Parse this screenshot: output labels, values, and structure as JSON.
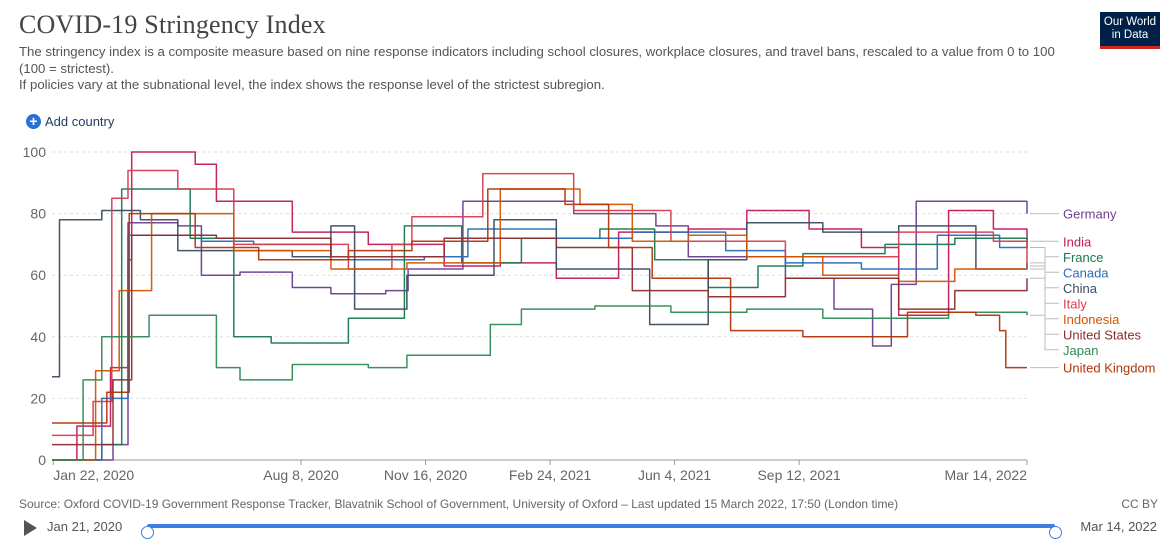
{
  "header": {
    "title": "COVID-19 Stringency Index",
    "subtitle_line1": "The stringency index is a composite measure based on nine response indicators including school closures, workplace closures, and travel bans, rescaled to a value from 0 to 100 (100 = strictest).",
    "subtitle_line2": "If policies vary at the subnational level, the index shows the response level of the strictest subregion.",
    "logo_line1": "Our World",
    "logo_line2": "in Data"
  },
  "controls": {
    "add_country_label": "Add country"
  },
  "footer": {
    "source": "Source: Oxford COVID-19 Government Response Tracker, Blavatnik School of Government, University of Oxford – Last updated 15 March 2022, 17:50 (London time)",
    "license": "CC BY"
  },
  "timeline": {
    "start_label": "Jan 21, 2020",
    "end_label": "Mar 14, 2022",
    "start_fraction": 0,
    "end_fraction": 1
  },
  "colors": {
    "logo_bg": "#002147",
    "logo_accent": "#ce261e",
    "slider": "#3d7fe0",
    "grid": "#dddddd"
  },
  "chart_data": {
    "type": "line",
    "title": "COVID-19 Stringency Index",
    "ylim": [
      0,
      100
    ],
    "yticks": [
      0,
      20,
      40,
      60,
      80,
      100
    ],
    "xlim": [
      "2020-01-21",
      "2022-03-14"
    ],
    "xticks": [
      "2020-01-22",
      "2020-08-08",
      "2020-11-16",
      "2021-02-24",
      "2021-06-04",
      "2021-09-12",
      "2022-03-14"
    ],
    "xtick_labels": [
      "Jan 22, 2020",
      "Aug 8, 2020",
      "Nov 16, 2020",
      "Feb 24, 2021",
      "Jun 4, 2021",
      "Sep 12, 2021",
      "Mar 14, 2022"
    ],
    "grid": "horizontal",
    "legend": "right",
    "series": [
      {
        "name": "Germany",
        "color": "#6d3e91",
        "points": [
          [
            "2020-01-21",
            0
          ],
          [
            "2020-03-10",
            5
          ],
          [
            "2020-03-22",
            77
          ],
          [
            "2020-05-01",
            76
          ],
          [
            "2020-05-20",
            60
          ],
          [
            "2020-06-20",
            61
          ],
          [
            "2020-08-01",
            56
          ],
          [
            "2020-09-01",
            54
          ],
          [
            "2020-10-15",
            55
          ],
          [
            "2020-11-02",
            62
          ],
          [
            "2020-12-16",
            84
          ],
          [
            "2021-01-20",
            84
          ],
          [
            "2021-03-15",
            80
          ],
          [
            "2021-05-20",
            76
          ],
          [
            "2021-06-15",
            66
          ],
          [
            "2021-09-01",
            59
          ],
          [
            "2021-10-10",
            49
          ],
          [
            "2021-11-10",
            37
          ],
          [
            "2021-11-25",
            57
          ],
          [
            "2021-12-15",
            84
          ],
          [
            "2022-03-01",
            84
          ],
          [
            "2022-03-14",
            80
          ]
        ]
      },
      {
        "name": "India",
        "color": "#c2185b",
        "points": [
          [
            "2020-01-21",
            0
          ],
          [
            "2020-02-10",
            11
          ],
          [
            "2020-03-08",
            30
          ],
          [
            "2020-03-22",
            65
          ],
          [
            "2020-03-25",
            100
          ],
          [
            "2020-05-15",
            96
          ],
          [
            "2020-06-01",
            84
          ],
          [
            "2020-08-01",
            74
          ],
          [
            "2020-10-01",
            70
          ],
          [
            "2020-12-01",
            63
          ],
          [
            "2021-01-15",
            64
          ],
          [
            "2021-03-01",
            59
          ],
          [
            "2021-04-20",
            74
          ],
          [
            "2021-06-15",
            75
          ],
          [
            "2021-08-01",
            81
          ],
          [
            "2021-09-20",
            75
          ],
          [
            "2021-11-01",
            69
          ],
          [
            "2021-12-01",
            47
          ],
          [
            "2022-01-10",
            81
          ],
          [
            "2022-02-15",
            75
          ],
          [
            "2022-03-14",
            71
          ]
        ]
      },
      {
        "name": "France",
        "color": "#18794e",
        "points": [
          [
            "2020-01-21",
            0
          ],
          [
            "2020-03-01",
            5
          ],
          [
            "2020-03-17",
            88
          ],
          [
            "2020-05-11",
            72
          ],
          [
            "2020-06-15",
            40
          ],
          [
            "2020-07-15",
            38
          ],
          [
            "2020-09-15",
            46
          ],
          [
            "2020-10-30",
            76
          ],
          [
            "2020-12-15",
            64
          ],
          [
            "2021-02-01",
            72
          ],
          [
            "2021-04-05",
            75
          ],
          [
            "2021-05-19",
            65
          ],
          [
            "2021-07-01",
            56
          ],
          [
            "2021-08-10",
            63
          ],
          [
            "2021-09-15",
            67
          ],
          [
            "2021-11-20",
            70
          ],
          [
            "2022-01-15",
            72
          ],
          [
            "2022-03-14",
            69
          ]
        ]
      },
      {
        "name": "Canada",
        "color": "#286bbb",
        "points": [
          [
            "2020-01-21",
            0
          ],
          [
            "2020-03-01",
            20
          ],
          [
            "2020-03-22",
            73
          ],
          [
            "2020-05-20",
            71
          ],
          [
            "2020-07-01",
            70
          ],
          [
            "2020-09-01",
            65
          ],
          [
            "2020-11-15",
            66
          ],
          [
            "2020-12-20",
            75
          ],
          [
            "2021-03-01",
            72
          ],
          [
            "2021-05-01",
            74
          ],
          [
            "2021-07-15",
            68
          ],
          [
            "2021-09-01",
            64
          ],
          [
            "2021-11-01",
            62
          ],
          [
            "2022-01-01",
            73
          ],
          [
            "2022-02-20",
            69
          ],
          [
            "2022-03-14",
            69
          ]
        ]
      },
      {
        "name": "China",
        "color": "#3a4c60",
        "points": [
          [
            "2020-01-21",
            27
          ],
          [
            "2020-01-27",
            78
          ],
          [
            "2020-03-01",
            81
          ],
          [
            "2020-04-01",
            78
          ],
          [
            "2020-05-01",
            68
          ],
          [
            "2020-08-01",
            66
          ],
          [
            "2020-09-01",
            76
          ],
          [
            "2020-09-20",
            49
          ],
          [
            "2020-11-01",
            60
          ],
          [
            "2021-01-10",
            78
          ],
          [
            "2021-03-01",
            62
          ],
          [
            "2021-05-15",
            44
          ],
          [
            "2021-07-01",
            65
          ],
          [
            "2021-08-01",
            77
          ],
          [
            "2021-10-01",
            74
          ],
          [
            "2021-12-01",
            76
          ],
          [
            "2022-02-01",
            62
          ],
          [
            "2022-03-14",
            64
          ]
        ]
      },
      {
        "name": "Italy",
        "color": "#d73c50",
        "points": [
          [
            "2020-01-21",
            8
          ],
          [
            "2020-02-23",
            19
          ],
          [
            "2020-03-09",
            85
          ],
          [
            "2020-03-22",
            94
          ],
          [
            "2020-05-01",
            88
          ],
          [
            "2020-06-15",
            70
          ],
          [
            "2020-09-15",
            62
          ],
          [
            "2020-10-20",
            70
          ],
          [
            "2020-11-05",
            79
          ],
          [
            "2021-01-01",
            93
          ],
          [
            "2021-03-15",
            81
          ],
          [
            "2021-06-01",
            71
          ],
          [
            "2021-09-01",
            66
          ],
          [
            "2021-12-01",
            74
          ],
          [
            "2022-02-15",
            71
          ],
          [
            "2022-03-14",
            63
          ]
        ]
      },
      {
        "name": "Indonesia",
        "color": "#d35400",
        "points": [
          [
            "2020-01-21",
            0
          ],
          [
            "2020-02-25",
            29
          ],
          [
            "2020-03-15",
            55
          ],
          [
            "2020-04-10",
            80
          ],
          [
            "2020-06-15",
            68
          ],
          [
            "2020-09-01",
            62
          ],
          [
            "2020-11-01",
            64
          ],
          [
            "2021-01-15",
            88
          ],
          [
            "2021-03-20",
            83
          ],
          [
            "2021-05-01",
            71
          ],
          [
            "2021-06-15",
            73
          ],
          [
            "2021-08-01",
            66
          ],
          [
            "2021-10-01",
            60
          ],
          [
            "2021-12-01",
            58
          ],
          [
            "2022-01-15",
            62
          ],
          [
            "2022-03-14",
            62
          ]
        ]
      },
      {
        "name": "United States",
        "color": "#8c2d2d",
        "points": [
          [
            "2020-01-21",
            5
          ],
          [
            "2020-03-10",
            26
          ],
          [
            "2020-03-25",
            73
          ],
          [
            "2020-06-01",
            72
          ],
          [
            "2020-09-01",
            66
          ],
          [
            "2020-12-01",
            72
          ],
          [
            "2021-03-01",
            69
          ],
          [
            "2021-05-01",
            55
          ],
          [
            "2021-07-01",
            53
          ],
          [
            "2021-09-01",
            59
          ],
          [
            "2021-12-01",
            49
          ],
          [
            "2022-01-15",
            55
          ],
          [
            "2022-03-14",
            59
          ]
        ]
      },
      {
        "name": "Japan",
        "color": "#2e8b57",
        "points": [
          [
            "2020-01-21",
            0
          ],
          [
            "2020-02-15",
            26
          ],
          [
            "2020-03-01",
            40
          ],
          [
            "2020-04-08",
            47
          ],
          [
            "2020-06-01",
            30
          ],
          [
            "2020-06-20",
            26
          ],
          [
            "2020-08-01",
            31
          ],
          [
            "2020-10-01",
            30
          ],
          [
            "2020-11-01",
            34
          ],
          [
            "2021-01-07",
            44
          ],
          [
            "2021-02-01",
            49
          ],
          [
            "2021-04-01",
            50
          ],
          [
            "2021-06-01",
            48
          ],
          [
            "2021-08-01",
            49
          ],
          [
            "2021-10-01",
            46
          ],
          [
            "2022-01-10",
            48
          ],
          [
            "2022-03-14",
            47
          ]
        ]
      },
      {
        "name": "United Kingdom",
        "color": "#b13507",
        "points": [
          [
            "2020-01-21",
            12
          ],
          [
            "2020-03-05",
            22
          ],
          [
            "2020-03-23",
            80
          ],
          [
            "2020-05-15",
            69
          ],
          [
            "2020-07-05",
            65
          ],
          [
            "2020-09-15",
            68
          ],
          [
            "2020-11-05",
            71
          ],
          [
            "2021-01-05",
            88
          ],
          [
            "2021-03-08",
            83
          ],
          [
            "2021-04-12",
            69
          ],
          [
            "2021-05-17",
            59
          ],
          [
            "2021-07-19",
            42
          ],
          [
            "2021-09-15",
            40
          ],
          [
            "2021-12-08",
            48
          ],
          [
            "2022-02-01",
            47
          ],
          [
            "2022-02-20",
            42
          ],
          [
            "2022-02-25",
            30
          ],
          [
            "2022-03-14",
            30
          ]
        ]
      }
    ]
  }
}
